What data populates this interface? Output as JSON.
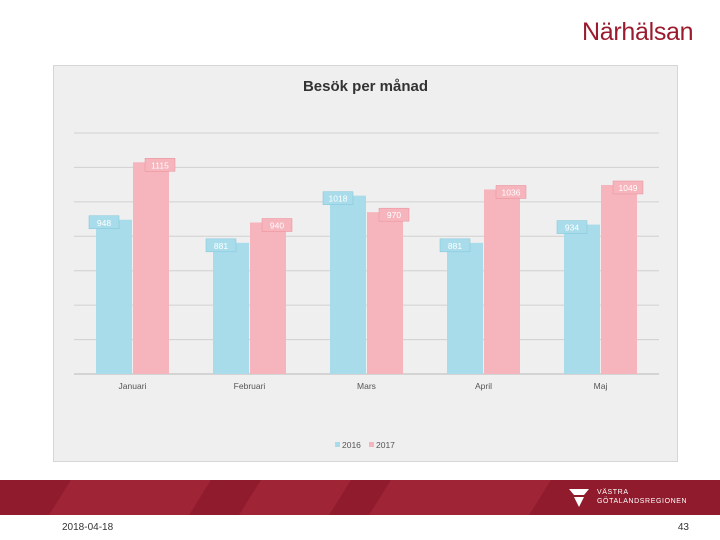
{
  "brand": {
    "name": "Närhälsan"
  },
  "footer": {
    "date": "2018-04-18",
    "page_number": "43",
    "logo_line1": "VÄSTRA",
    "logo_line2": "GÖTALANDSREGIONEN"
  },
  "colors": {
    "series_2016": "#a8dcea",
    "series_2017": "#f6b4bc",
    "brand": "#9b1b2e",
    "footer_bar": "#8f1b2c"
  },
  "chart_data": {
    "type": "bar",
    "title": "Besök per månad",
    "xlabel": "",
    "ylabel": "",
    "categories": [
      "Januari",
      "Februari",
      "Mars",
      "April",
      "Maj"
    ],
    "series": [
      {
        "name": "2016",
        "values": [
          948,
          881,
          1018,
          881,
          934
        ]
      },
      {
        "name": "2017",
        "values": [
          1115,
          940,
          970,
          1036,
          1049
        ]
      }
    ],
    "ylim": [
      500,
      1200
    ],
    "grid": true,
    "legend": "bottom",
    "data_labels": true
  }
}
